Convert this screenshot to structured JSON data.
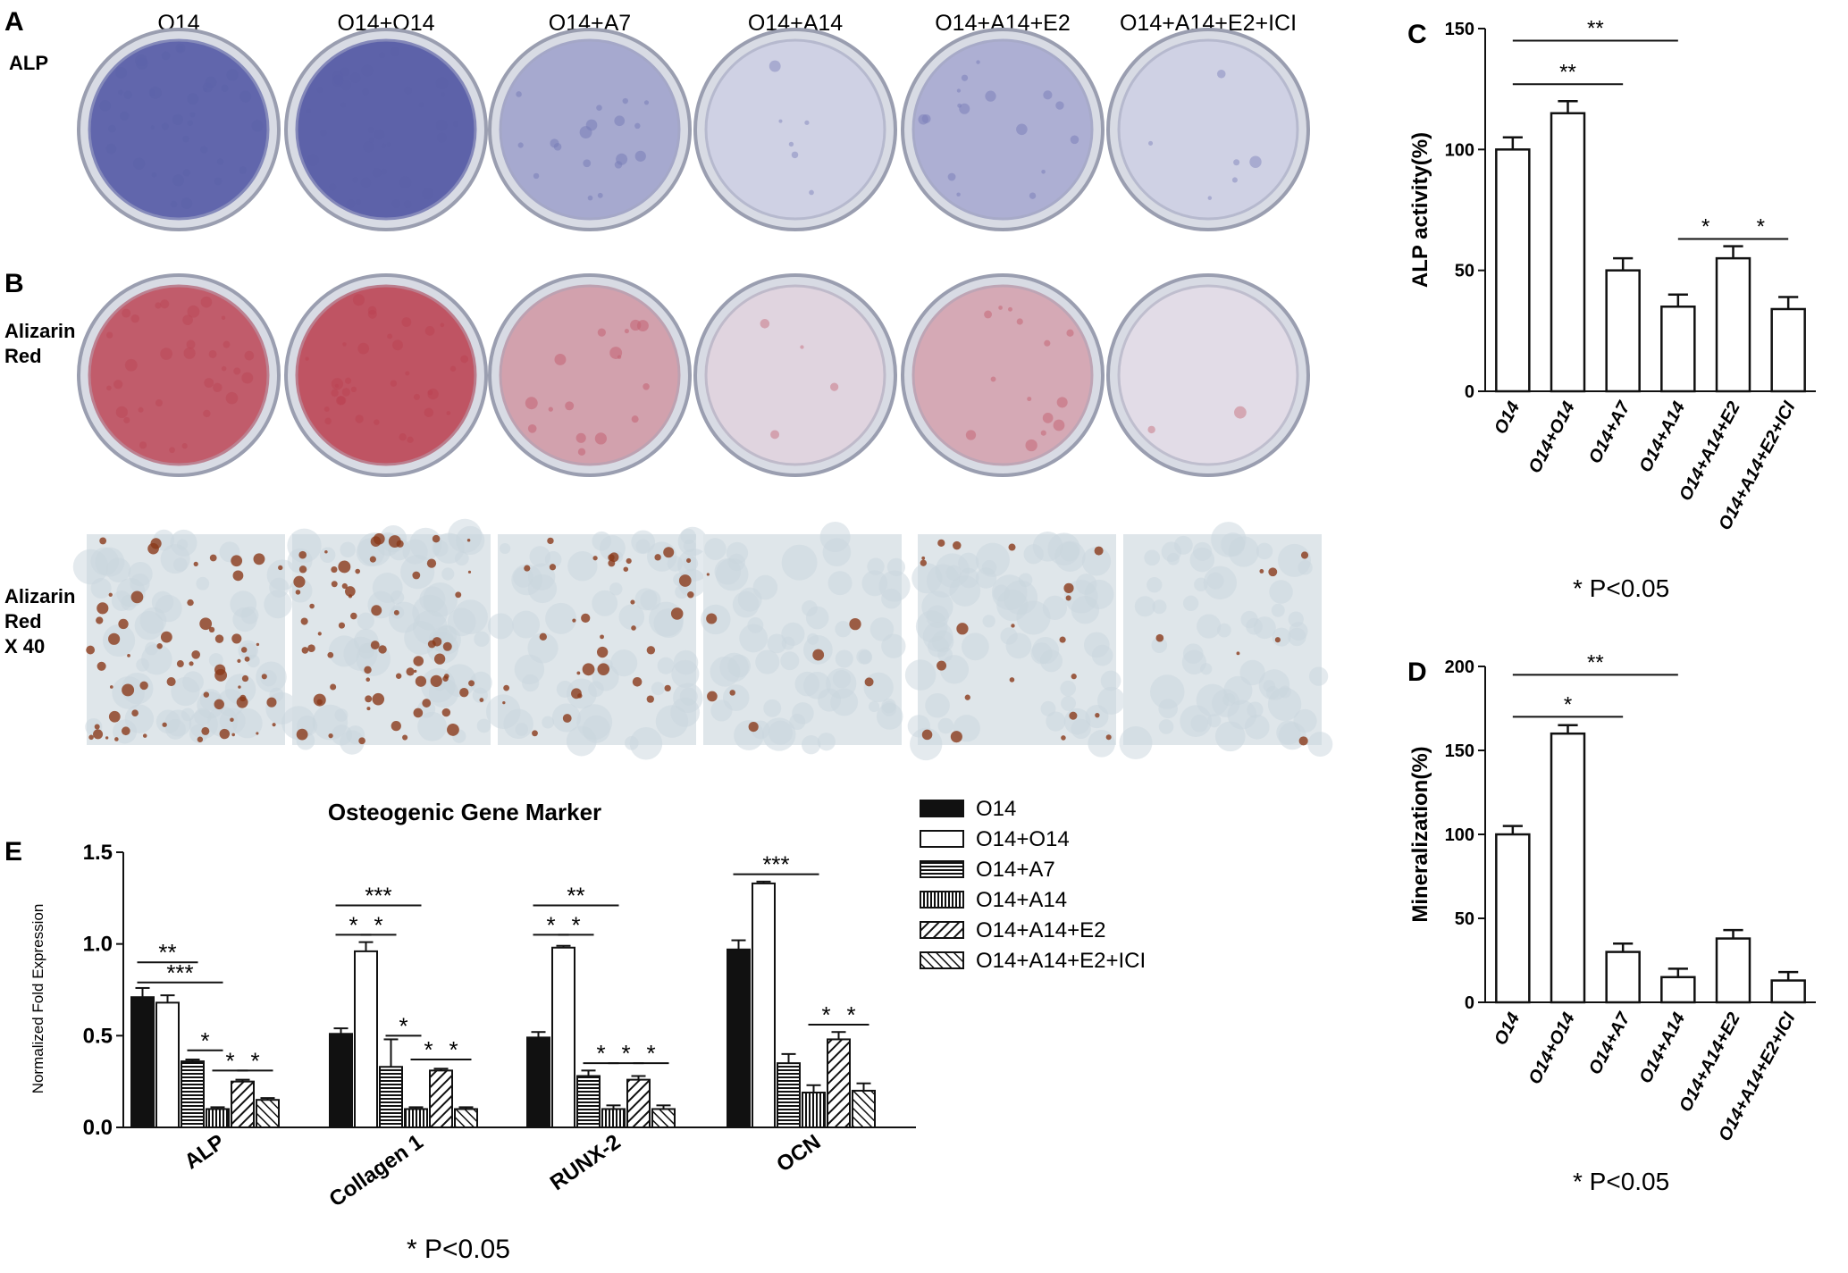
{
  "panels": {
    "A": "A",
    "B": "B",
    "C": "C",
    "D": "D",
    "E": "E"
  },
  "row_labels": {
    "alp": "ALP",
    "alizarin_1": "Alizarin",
    "alizarin_2": "Red",
    "alizarin40_1": "Alizarin",
    "alizarin40_2": "Red",
    "alizarin40_3": "X 40"
  },
  "groups": [
    "O14",
    "O14+O14",
    "O14+A7",
    "O14+A14",
    "O14+A14+E2",
    "O14+A14+E2+ICI"
  ],
  "colors": {
    "alp_stain": "#5a5fa8",
    "alizarin_stain": "#b83a4a",
    "micro_spot": "#8a3a1a"
  },
  "plates": {
    "alp": [
      {
        "intensity": 0.95
      },
      {
        "intensity": 0.98
      },
      {
        "intensity": 0.45
      },
      {
        "intensity": 0.15
      },
      {
        "intensity": 0.4
      },
      {
        "intensity": 0.15
      }
    ],
    "alizarin": [
      {
        "intensity": 0.8
      },
      {
        "intensity": 0.85
      },
      {
        "intensity": 0.4
      },
      {
        "intensity": 0.1
      },
      {
        "intensity": 0.35
      },
      {
        "intensity": 0.05
      }
    ],
    "micro": [
      {
        "density": 0.9
      },
      {
        "density": 0.95
      },
      {
        "density": 0.5
      },
      {
        "density": 0.12
      },
      {
        "density": 0.3
      },
      {
        "density": 0.1
      }
    ]
  },
  "chart_data": [
    {
      "id": "C",
      "type": "bar",
      "categories": [
        "O14",
        "O14+O14",
        "O14+A7",
        "O14+A14",
        "O14+A14+E2",
        "O14+A14+E2+ICI"
      ],
      "values": [
        100,
        115,
        50,
        35,
        55,
        34
      ],
      "errors": [
        5,
        5,
        5,
        5,
        5,
        5
      ],
      "ylabel": "ALP activity(%)",
      "ylim": [
        0,
        150
      ],
      "yticks": [
        0,
        50,
        100,
        150
      ],
      "significance": [
        {
          "from": 0,
          "to": 3,
          "label": "**",
          "y": 145
        },
        {
          "from": 0,
          "to": 2,
          "label": "**",
          "y": 127
        },
        {
          "from": 3,
          "to": 5,
          "label": "*",
          "y": 63,
          "two": true
        }
      ],
      "note": "* P<0.05"
    },
    {
      "id": "D",
      "type": "bar",
      "categories": [
        "O14",
        "O14+O14",
        "O14+A7",
        "O14+A14",
        "O14+A14+E2",
        "O14+A14+E2+ICI"
      ],
      "values": [
        100,
        160,
        30,
        15,
        38,
        13
      ],
      "errors": [
        5,
        5,
        5,
        5,
        5,
        5
      ],
      "ylabel": "Mineralization(%)",
      "ylim": [
        0,
        200
      ],
      "yticks": [
        0,
        50,
        100,
        150,
        200
      ],
      "significance": [
        {
          "from": 0,
          "to": 3,
          "label": "**",
          "y": 195
        },
        {
          "from": 0,
          "to": 2,
          "label": "*",
          "y": 170
        }
      ],
      "note": "* P<0.05"
    },
    {
      "id": "E",
      "type": "bar",
      "title": "Osteogenic Gene Marker",
      "categories": [
        "ALP",
        "Collagen 1",
        "RUNX-2",
        "OCN"
      ],
      "ylabel": "Normalized Fold Expression",
      "ylim": [
        0,
        1.5
      ],
      "yticks": [
        "0.0",
        "0.5",
        "1.0",
        "1.5"
      ],
      "series": [
        {
          "name": "O14",
          "pattern": "solid",
          "values": [
            0.71,
            0.51,
            0.49,
            0.97
          ],
          "errors": [
            0.05,
            0.03,
            0.03,
            0.05
          ]
        },
        {
          "name": "O14+O14",
          "pattern": "white",
          "values": [
            0.68,
            0.96,
            0.98,
            1.33
          ],
          "errors": [
            0.04,
            0.05,
            0.01,
            0.01
          ]
        },
        {
          "name": "O14+A7",
          "pattern": "hlines",
          "values": [
            0.36,
            0.33,
            0.28,
            0.35
          ],
          "errors": [
            0.01,
            0.15,
            0.03,
            0.05
          ]
        },
        {
          "name": "O14+A14",
          "pattern": "vlines",
          "values": [
            0.1,
            0.1,
            0.1,
            0.19
          ],
          "errors": [
            0.01,
            0.01,
            0.02,
            0.04
          ]
        },
        {
          "name": "O14+A14+E2",
          "pattern": "diag",
          "values": [
            0.25,
            0.31,
            0.26,
            0.48
          ],
          "errors": [
            0.01,
            0.01,
            0.02,
            0.04
          ]
        },
        {
          "name": "O14+A14+E2+ICI",
          "pattern": "diag2",
          "values": [
            0.15,
            0.1,
            0.1,
            0.2
          ],
          "errors": [
            0.01,
            0.01,
            0.02,
            0.04
          ]
        }
      ],
      "significance": [
        {
          "group": 0,
          "from": 0,
          "to": 2,
          "label": "**",
          "y": 0.9
        },
        {
          "group": 0,
          "from": 0,
          "to": 3,
          "label": "***",
          "y": 0.79
        },
        {
          "group": 0,
          "from": 2,
          "to": 3,
          "label": "*",
          "y": 0.42
        },
        {
          "group": 0,
          "from": 3,
          "to": 4,
          "label": "*",
          "y": 0.31
        },
        {
          "group": 0,
          "from": 4,
          "to": 5,
          "label": "*",
          "y": 0.31
        },
        {
          "group": 1,
          "from": 0,
          "to": 3,
          "label": "***",
          "y": 1.21
        },
        {
          "group": 1,
          "from": 0,
          "to": 1,
          "label": "*",
          "y": 1.05
        },
        {
          "group": 1,
          "from": 1,
          "to": 2,
          "label": "*",
          "y": 1.05
        },
        {
          "group": 1,
          "from": 2,
          "to": 3,
          "label": "*",
          "y": 0.5
        },
        {
          "group": 1,
          "from": 3,
          "to": 4,
          "label": "*",
          "y": 0.37
        },
        {
          "group": 1,
          "from": 4,
          "to": 5,
          "label": "*",
          "y": 0.37
        },
        {
          "group": 2,
          "from": 0,
          "to": 3,
          "label": "**",
          "y": 1.21
        },
        {
          "group": 2,
          "from": 0,
          "to": 1,
          "label": "*",
          "y": 1.05
        },
        {
          "group": 2,
          "from": 1,
          "to": 2,
          "label": "*",
          "y": 1.05
        },
        {
          "group": 2,
          "from": 2,
          "to": 3,
          "label": "*",
          "y": 0.35
        },
        {
          "group": 2,
          "from": 3,
          "to": 4,
          "label": "*",
          "y": 0.35
        },
        {
          "group": 2,
          "from": 4,
          "to": 5,
          "label": "*",
          "y": 0.35
        },
        {
          "group": 3,
          "from": 0,
          "to": 3,
          "label": "***",
          "y": 1.38
        },
        {
          "group": 3,
          "from": 3,
          "to": 4,
          "label": "*",
          "y": 0.56
        },
        {
          "group": 3,
          "from": 4,
          "to": 5,
          "label": "*",
          "y": 0.56
        }
      ],
      "note": "* P<0.05",
      "legend": "right"
    }
  ]
}
